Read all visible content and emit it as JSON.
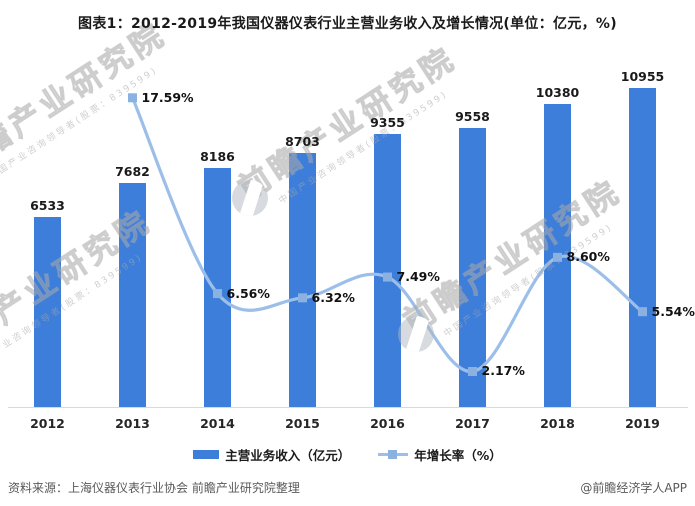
{
  "title": "图表1：2012-2019年我国仪器仪表行业主营业务收入及增长情况(单位：亿元，%)",
  "chart_data": {
    "type": "bar",
    "subtype": "bar-line-combo",
    "categories": [
      "2012",
      "2013",
      "2014",
      "2015",
      "2016",
      "2017",
      "2018",
      "2019"
    ],
    "series": [
      {
        "name": "主营业务收入（亿元）",
        "type": "bar",
        "values": [
          6533,
          7682,
          8186,
          8703,
          9355,
          9558,
          10380,
          10955
        ]
      },
      {
        "name": "年增长率（%）",
        "type": "line",
        "values": [
          null,
          17.59,
          6.56,
          6.32,
          7.49,
          2.17,
          8.6,
          5.54
        ]
      }
    ],
    "title": "图表1：2012-2019年我国仪器仪表行业主营业务收入及增长情况(单位：亿元，%)",
    "xlabel": "",
    "ylabel": "",
    "bar_axis_range": [
      0,
      11600
    ],
    "line_axis_range": [
      0,
      20
    ],
    "grid": false,
    "legend_position": "bottom",
    "bar_color": "#3d7edb",
    "line_color": "#9cbfe9",
    "marker_color": "#8ab1e0",
    "data_label_colors": "#1a1a1a"
  },
  "legend": {
    "bar_label": "主营业务收入（亿元）",
    "line_label": "年增长率（%）"
  },
  "footer": {
    "source": "资料来源：上海仪器仪表行业协会 前瞻产业研究院整理",
    "credit": "@前瞻经济学人APP"
  },
  "watermark": {
    "big": "前瞻产业研究院",
    "sub": "中国产业咨询领导者(股票：839599)"
  }
}
